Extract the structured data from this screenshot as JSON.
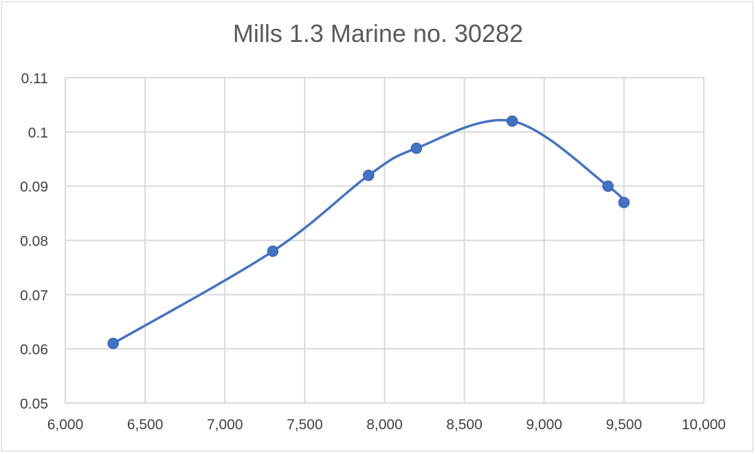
{
  "chart_data": {
    "type": "line",
    "title": "Mills 1.3 Marine no. 30282",
    "xlabel": "",
    "ylabel": "",
    "xlim": [
      6000,
      10000
    ],
    "ylim": [
      0.05,
      0.11
    ],
    "x_ticks": [
      6000,
      6500,
      7000,
      7500,
      8000,
      8500,
      9000,
      9500,
      10000
    ],
    "x_tick_labels": [
      "6,000",
      "6,500",
      "7,000",
      "7,500",
      "8,000",
      "8,500",
      "9,000",
      "9,500",
      "10,000"
    ],
    "y_ticks": [
      0.05,
      0.06,
      0.07,
      0.08,
      0.09,
      0.1,
      0.11
    ],
    "y_tick_labels": [
      "0.05",
      "0.06",
      "0.07",
      "0.08",
      "0.09",
      "0.1",
      "0.11"
    ],
    "grid": true,
    "smooth": true,
    "series": [
      {
        "color": "#4472c4",
        "x": [
          6300,
          7300,
          7900,
          8200,
          8800,
          9400,
          9500
        ],
        "y": [
          0.061,
          0.078,
          0.092,
          0.097,
          0.102,
          0.09,
          0.087
        ]
      }
    ]
  }
}
